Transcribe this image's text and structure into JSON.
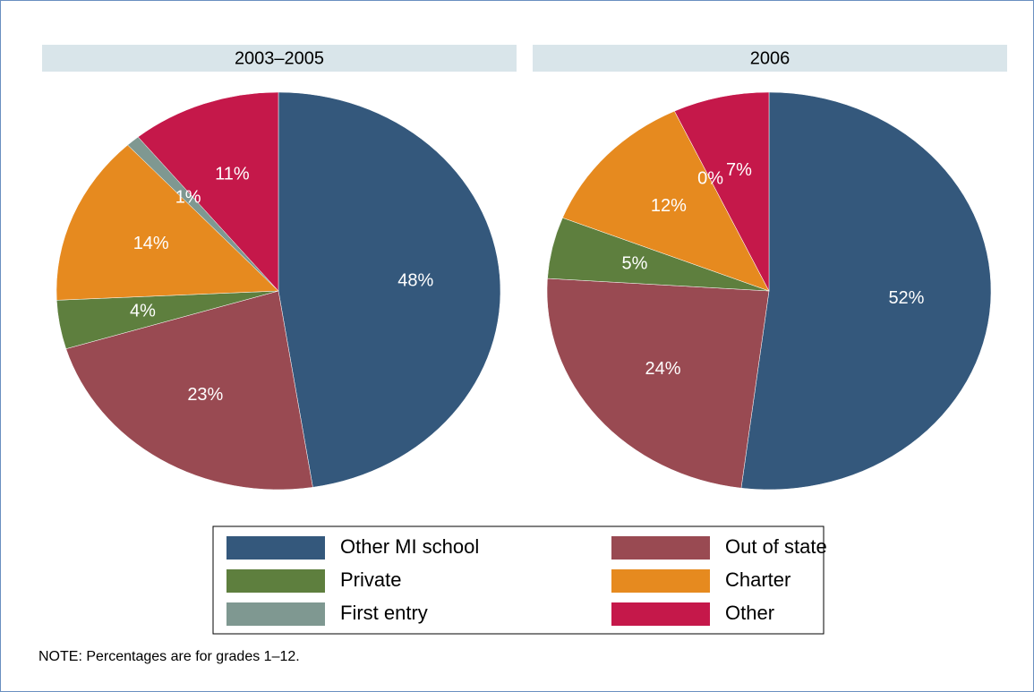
{
  "chart_data": {
    "type": "pie",
    "categories": [
      "Other MI school",
      "Out of state",
      "Private",
      "Charter",
      "First entry",
      "Other"
    ],
    "colors": [
      "#34587c",
      "#994a52",
      "#5e7f3e",
      "#e68a1f",
      "#7f9891",
      "#c5184a"
    ],
    "legend": "bottom",
    "panels": [
      {
        "title": "2003–2005",
        "values": [
          48,
          23,
          4,
          14,
          1,
          11
        ],
        "value_labels": [
          "48%",
          "23%",
          "4%",
          "14%",
          "1%",
          "11%"
        ]
      },
      {
        "title": "2006",
        "values": [
          52,
          24,
          5,
          12,
          0,
          7
        ],
        "value_labels": [
          "52%",
          "24%",
          "5%",
          "12%",
          "0%",
          "7%"
        ]
      }
    ],
    "note": "NOTE: Percentages are for grades 1–12."
  }
}
